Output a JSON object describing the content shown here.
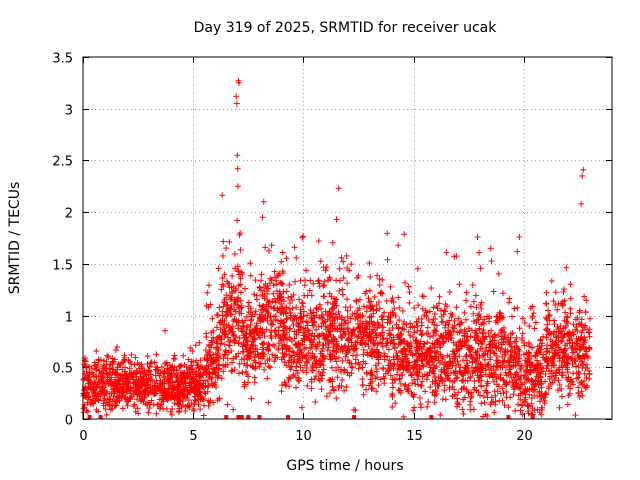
{
  "chart_data": {
    "type": "scatter",
    "title": "Day 319 of 2025, SRMTID for receiver ucak",
    "xlabel": "GPS time / hours",
    "ylabel": "SRMTID / TECUs",
    "xlim": [
      0,
      24
    ],
    "ylim": [
      0,
      3.5
    ],
    "xticks": [
      0,
      5,
      10,
      15,
      20
    ],
    "yticks": [
      0,
      0.5,
      1,
      1.5,
      2,
      2.5,
      3,
      3.5
    ],
    "xtick_labels": [
      "0",
      "5",
      "10",
      "15",
      "20"
    ],
    "ytick_labels": [
      "0",
      "0.5",
      "1",
      "1.5",
      "2",
      "2.5",
      "3",
      "3.5"
    ],
    "grid": true,
    "marker": "+",
    "series_color": "#ff0000",
    "points_per_hour": 160,
    "data_end_hour": 23.0,
    "activity_profile": [
      {
        "start": 0.0,
        "end": 5.5,
        "center": 0.32,
        "spread": 0.12
      },
      {
        "start": 5.5,
        "end": 6.2,
        "center": 0.55,
        "spread": 0.2
      },
      {
        "start": 6.2,
        "end": 7.2,
        "center": 1.0,
        "spread": 0.3
      },
      {
        "start": 7.2,
        "end": 8.0,
        "center": 0.7,
        "spread": 0.2
      },
      {
        "start": 8.0,
        "end": 9.0,
        "center": 0.95,
        "spread": 0.25
      },
      {
        "start": 9.0,
        "end": 14.0,
        "center": 0.78,
        "spread": 0.25
      },
      {
        "start": 14.0,
        "end": 16.5,
        "center": 0.65,
        "spread": 0.25
      },
      {
        "start": 16.5,
        "end": 19.5,
        "center": 0.6,
        "spread": 0.25
      },
      {
        "start": 19.5,
        "end": 21.0,
        "center": 0.45,
        "spread": 0.2
      },
      {
        "start": 21.0,
        "end": 23.0,
        "center": 0.65,
        "spread": 0.22
      }
    ],
    "outliers": [
      {
        "x": 7.05,
        "y": 3.27
      },
      {
        "x": 7.08,
        "y": 3.25
      },
      {
        "x": 6.95,
        "y": 3.12
      },
      {
        "x": 6.98,
        "y": 3.05
      },
      {
        "x": 7.0,
        "y": 2.55
      },
      {
        "x": 7.02,
        "y": 2.42
      },
      {
        "x": 7.03,
        "y": 2.25
      },
      {
        "x": 6.99,
        "y": 1.92
      },
      {
        "x": 7.1,
        "y": 1.78
      },
      {
        "x": 8.2,
        "y": 2.1
      },
      {
        "x": 8.15,
        "y": 1.95
      },
      {
        "x": 11.6,
        "y": 2.23
      },
      {
        "x": 11.5,
        "y": 1.93
      },
      {
        "x": 22.7,
        "y": 2.41
      },
      {
        "x": 22.65,
        "y": 2.35
      },
      {
        "x": 22.6,
        "y": 2.08
      },
      {
        "x": 9.6,
        "y": 1.66
      },
      {
        "x": 14.3,
        "y": 1.68
      },
      {
        "x": 17.9,
        "y": 1.76
      },
      {
        "x": 19.8,
        "y": 1.76
      },
      {
        "x": 18.5,
        "y": 1.65
      },
      {
        "x": 10.7,
        "y": 1.72
      },
      {
        "x": 19.7,
        "y": 1.62
      }
    ],
    "zero_markers_x": [
      0.3,
      0.8,
      6.5,
      7.05,
      7.2,
      7.5,
      8.0,
      9.3,
      12.3,
      15.8,
      19.3,
      20.4
    ]
  }
}
